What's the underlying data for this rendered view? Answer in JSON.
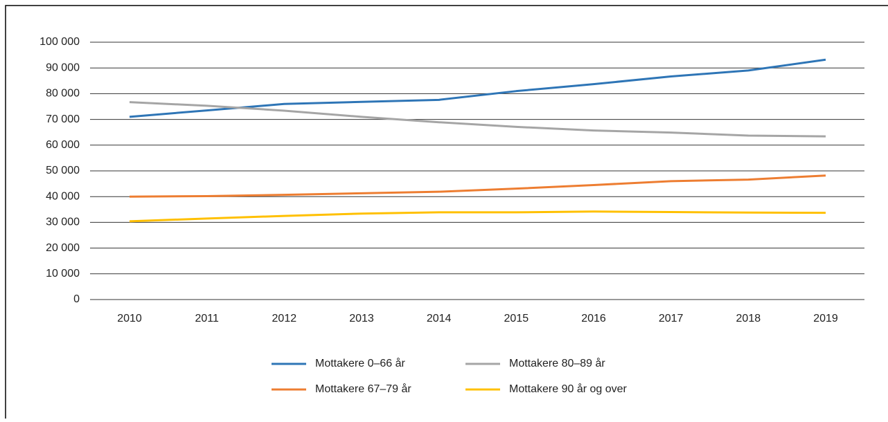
{
  "chart_data": {
    "type": "line",
    "categories": [
      "2010",
      "2011",
      "2012",
      "2013",
      "2014",
      "2015",
      "2016",
      "2017",
      "2018",
      "2019"
    ],
    "series": [
      {
        "name": "Mottakere 0–66 år",
        "color": "#2e75b6",
        "values": [
          71000,
          73500,
          76000,
          76800,
          77600,
          81000,
          83700,
          86700,
          89000,
          93200
        ]
      },
      {
        "name": "Mottakere 67–79 år",
        "color": "#ed7d31",
        "values": [
          40000,
          40200,
          40700,
          41300,
          41900,
          43100,
          44500,
          46000,
          46600,
          48200
        ]
      },
      {
        "name": "Mottakere 80–89 år",
        "color": "#a5a5a5",
        "values": [
          76700,
          75300,
          73400,
          71000,
          68900,
          67100,
          65700,
          64900,
          63700,
          63400
        ]
      },
      {
        "name": "Mottakere 90 år og over",
        "color": "#ffc000",
        "values": [
          30400,
          31500,
          32500,
          33400,
          33900,
          33900,
          34200,
          34000,
          33800,
          33700
        ]
      }
    ],
    "ylim": [
      0,
      100000
    ],
    "yticks": [
      0,
      {
        "value": 10000,
        "label": "10 000"
      },
      {
        "value": 20000,
        "label": "20 000"
      },
      {
        "value": 30000,
        "label": "30 000"
      },
      {
        "value": 40000,
        "label": "40 000"
      },
      {
        "value": 50000,
        "label": "50 000"
      },
      {
        "value": 60000,
        "label": "60 000"
      },
      {
        "value": 70000,
        "label": "70 000"
      },
      {
        "value": 80000,
        "label": "80 000"
      },
      {
        "value": 90000,
        "label": "90 000"
      },
      {
        "value": 100000,
        "label": "100 000"
      }
    ],
    "grid": true,
    "legend": "bottom"
  }
}
